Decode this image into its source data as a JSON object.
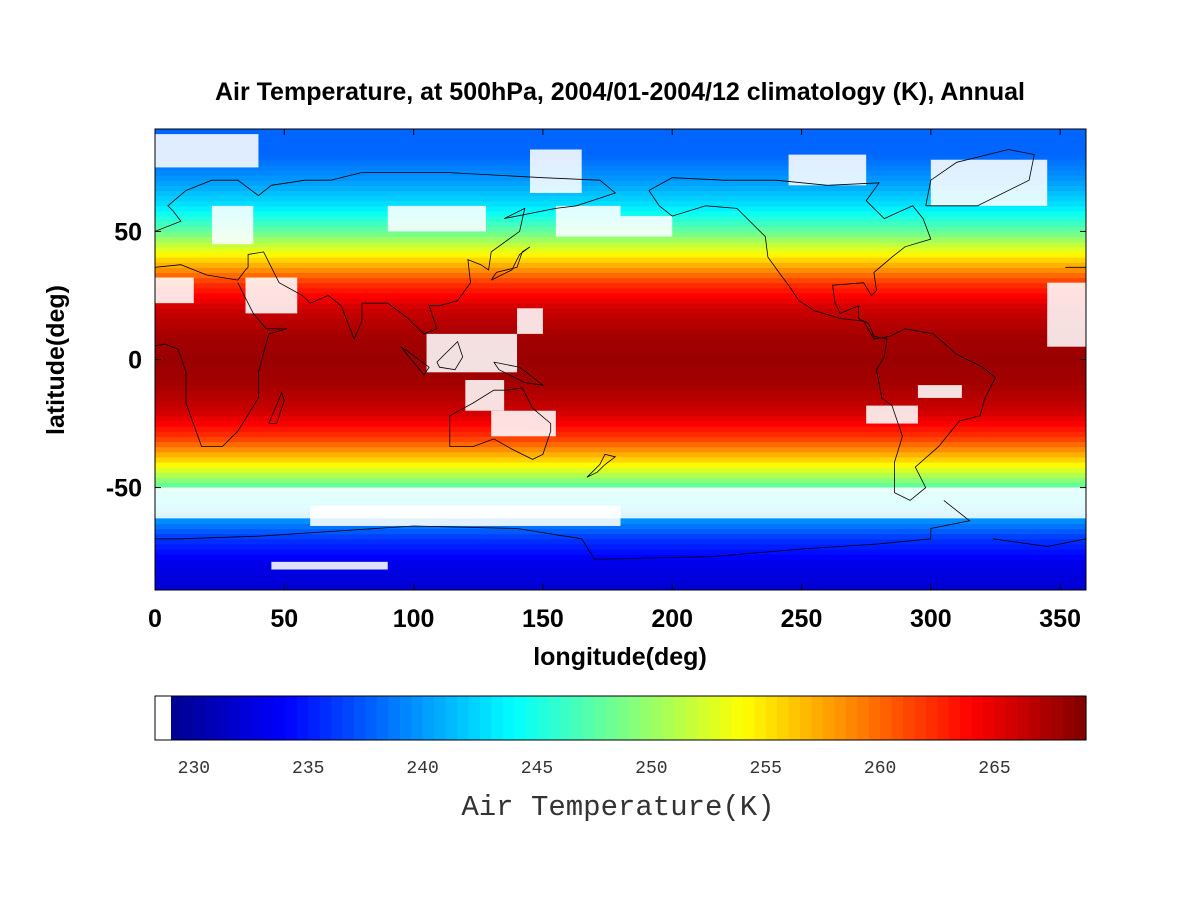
{
  "chart_data": {
    "type": "heatmap",
    "title": "Air Temperature, at 500hPa, 2004/01-2004/12 climatology (K), Annual",
    "xlabel": "longitude(deg)",
    "ylabel": "latitude(deg)",
    "xlim": [
      0,
      360
    ],
    "ylim": [
      -90,
      90
    ],
    "x_ticks": [
      0,
      50,
      100,
      150,
      200,
      250,
      300,
      350
    ],
    "y_ticks": [
      -50,
      0,
      50
    ],
    "x_tick_labels": [
      "0",
      "50",
      "100",
      "150",
      "200",
      "250",
      "300",
      "350"
    ],
    "y_tick_labels": [
      "-50",
      "0",
      "50"
    ],
    "grid": false,
    "overlay": "coastlines",
    "missing_color": "#ffffff",
    "zonal_mean_profile": {
      "lat": [
        -90,
        -80,
        -70,
        -60,
        -50,
        -40,
        -30,
        -20,
        -10,
        0,
        10,
        20,
        30,
        40,
        50,
        60,
        70,
        80,
        90
      ],
      "value": [
        232,
        233,
        236,
        241,
        247,
        255,
        262,
        266,
        267.5,
        268,
        267.5,
        266,
        262,
        255,
        248,
        243,
        240,
        238,
        238
      ]
    },
    "colorbar": {
      "label": "Air Temperature(K)",
      "min": 229,
      "max": 269,
      "ticks": [
        230,
        235,
        240,
        245,
        250,
        255,
        260,
        265
      ],
      "tick_labels": [
        "230",
        "235",
        "240",
        "245",
        "250",
        "255",
        "260",
        "265"
      ],
      "colormap": "jet",
      "colors": [
        "#00008f",
        "#0000ff",
        "#0080ff",
        "#00ffff",
        "#80ff80",
        "#ffff00",
        "#ff8000",
        "#ff0000",
        "#800000"
      ],
      "below_min_color": "#ffffff"
    }
  }
}
